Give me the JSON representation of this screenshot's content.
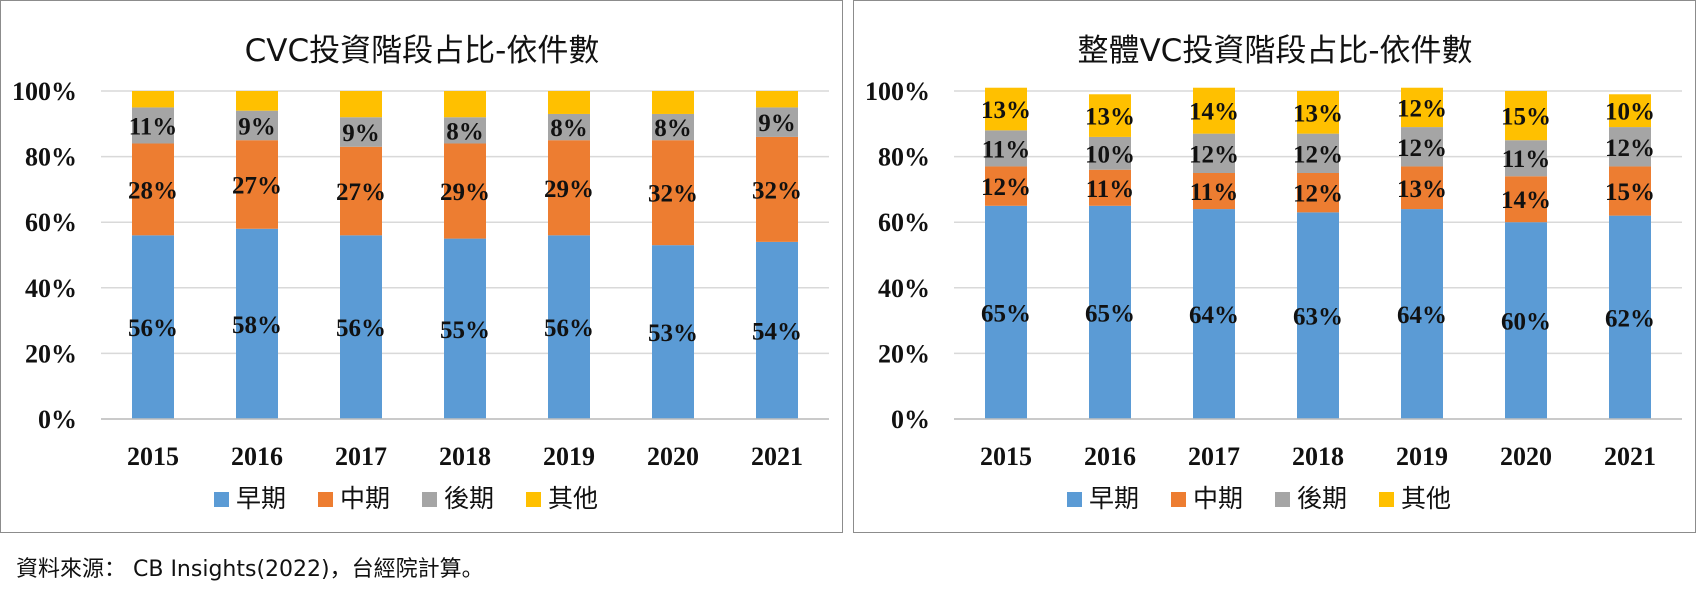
{
  "chart_data": [
    {
      "type": "bar",
      "stacked": true,
      "title": "CVC投資階段占比-依件數",
      "categories": [
        "2015",
        "2016",
        "2017",
        "2018",
        "2019",
        "2020",
        "2021"
      ],
      "ylim": [
        0,
        100
      ],
      "yticks": [
        "0%",
        "20%",
        "40%",
        "60%",
        "80%",
        "100%"
      ],
      "grid": true,
      "legend_position": "bottom",
      "series": [
        {
          "name": "早期",
          "color": "#5b9bd5",
          "values": [
            56,
            58,
            56,
            55,
            56,
            53,
            54
          ],
          "labels": [
            "56%",
            "58%",
            "56%",
            "55%",
            "56%",
            "53%",
            "54%"
          ]
        },
        {
          "name": "中期",
          "color": "#ed7d31",
          "values": [
            28,
            27,
            27,
            29,
            29,
            32,
            32
          ],
          "labels": [
            "28%",
            "27%",
            "27%",
            "29%",
            "29%",
            "32%",
            "32%"
          ]
        },
        {
          "name": "後期",
          "color": "#a5a5a5",
          "values": [
            11,
            9,
            9,
            8,
            8,
            8,
            9
          ],
          "labels": [
            "11%",
            "9%",
            "9%",
            "8%",
            "8%",
            "8%",
            "9%"
          ]
        },
        {
          "name": "其他",
          "color": "#ffc000",
          "values": [
            5,
            6,
            8,
            8,
            7,
            7,
            5
          ],
          "labels": [
            "",
            "",
            "",
            "",
            "",
            "",
            ""
          ]
        }
      ]
    },
    {
      "type": "bar",
      "stacked": true,
      "title": "整體VC投資階段占比-依件數",
      "categories": [
        "2015",
        "2016",
        "2017",
        "2018",
        "2019",
        "2020",
        "2021"
      ],
      "ylim": [
        0,
        100
      ],
      "yticks": [
        "0%",
        "20%",
        "40%",
        "60%",
        "80%",
        "100%"
      ],
      "grid": true,
      "legend_position": "bottom",
      "series": [
        {
          "name": "早期",
          "color": "#5b9bd5",
          "values": [
            65,
            65,
            64,
            63,
            64,
            60,
            62
          ],
          "labels": [
            "65%",
            "65%",
            "64%",
            "63%",
            "64%",
            "60%",
            "62%"
          ]
        },
        {
          "name": "中期",
          "color": "#ed7d31",
          "values": [
            12,
            11,
            11,
            12,
            13,
            14,
            15
          ],
          "labels": [
            "12%",
            "11%",
            "11%",
            "12%",
            "13%",
            "14%",
            "15%"
          ]
        },
        {
          "name": "後期",
          "color": "#a5a5a5",
          "values": [
            11,
            10,
            12,
            12,
            12,
            11,
            12
          ],
          "labels": [
            "11%",
            "10%",
            "12%",
            "12%",
            "12%",
            "11%",
            "12%"
          ]
        },
        {
          "name": "其他",
          "color": "#ffc000",
          "values": [
            13,
            13,
            14,
            13,
            12,
            15,
            10
          ],
          "labels": [
            "13%",
            "13%",
            "14%",
            "13%",
            "12%",
            "15%",
            "10%"
          ]
        }
      ]
    }
  ],
  "source_note": "資料來源： CB Insights(2022)，台經院計算。"
}
